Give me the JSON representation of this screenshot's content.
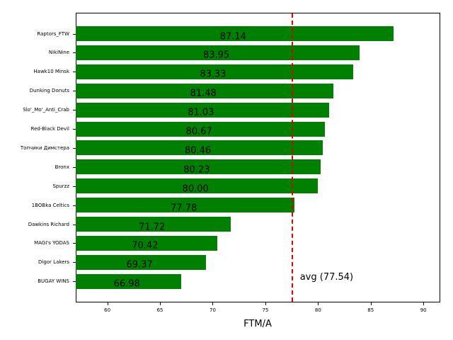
{
  "chart_data": {
    "type": "bar",
    "orientation": "horizontal",
    "title": "",
    "xlabel": "FTM/A",
    "ylabel": "",
    "xlim": [
      57.0,
      91.6
    ],
    "xticks": [
      60,
      65,
      70,
      75,
      80,
      85,
      90
    ],
    "xtick_labels": [
      "60",
      "65",
      "70",
      "75",
      "80",
      "85",
      "90"
    ],
    "grid": false,
    "bar_color": "#008000",
    "categories": [
      "Raptors_FTW",
      "NikiNine",
      "Hawk10 Minsk",
      "Dunking Donuts",
      "Slo'_Mo'_Anti_Crab",
      "Red-Black Devil",
      "Топчики Димстера",
      "Bronx",
      "Spurzz",
      "1BOBka Celtics",
      "Dawkins Richard",
      "MAGI's YODAS",
      "Digor Lakers",
      "BUGAY WINS"
    ],
    "values": [
      87.14,
      83.95,
      83.33,
      81.48,
      81.03,
      80.67,
      80.46,
      80.23,
      80.0,
      77.78,
      71.72,
      70.42,
      69.37,
      66.98
    ],
    "value_labels": [
      "87.14",
      "83.95",
      "83.33",
      "81.48",
      "81.03",
      "80.67",
      "80.46",
      "80.23",
      "80.00",
      "77.78",
      "71.72",
      "70.42",
      "69.37",
      "66.98"
    ],
    "reference_line": {
      "value": 77.54,
      "style": "dashed",
      "color": "#e00000",
      "label": "avg (77.54)"
    }
  }
}
